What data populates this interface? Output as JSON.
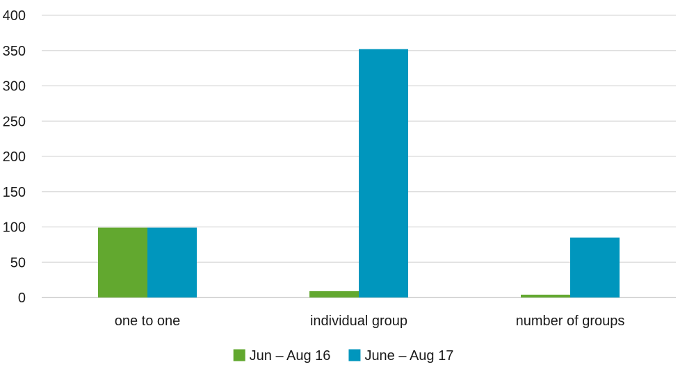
{
  "chart_data": {
    "type": "bar",
    "title": "",
    "xlabel": "",
    "ylabel": "",
    "categories": [
      "one to one",
      "individual group",
      "number of groups"
    ],
    "series": [
      {
        "name": "Jun – Aug 16",
        "values": [
          99,
          9,
          4
        ],
        "color": "#62a82f"
      },
      {
        "name": "June – Aug 17",
        "values": [
          99,
          352,
          85
        ],
        "color": "#0096bd"
      }
    ],
    "ylim": [
      0,
      400
    ],
    "yticks": [
      0,
      50,
      100,
      150,
      200,
      250,
      300,
      350,
      400
    ],
    "grid": true,
    "legend_position": "bottom"
  }
}
